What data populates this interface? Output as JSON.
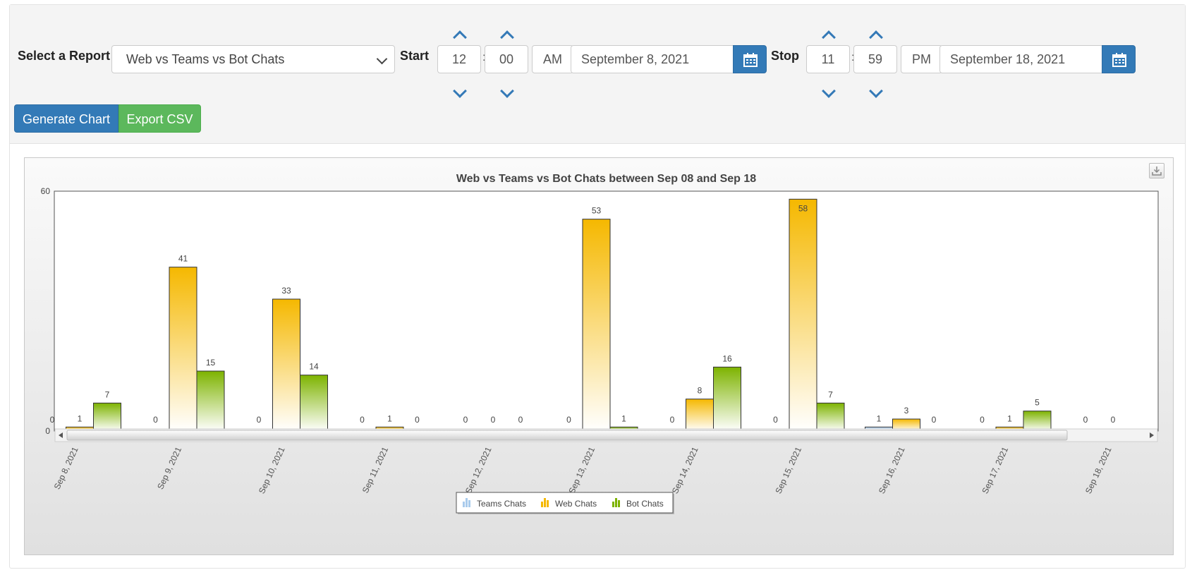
{
  "controls": {
    "select_report_label": "Select a Report",
    "report_value": "Web vs Teams vs Bot Chats",
    "start_label": "Start",
    "start_hour": "12",
    "start_minute": "00",
    "start_ampm": "AM",
    "start_date": "September 8, 2021",
    "stop_label": "Stop",
    "stop_hour": "11",
    "stop_minute": "59",
    "stop_ampm": "PM",
    "stop_date": "September 18, 2021",
    "colon": ":",
    "generate_label": "Generate Chart",
    "export_label": "Export CSV",
    "icons": [
      "chevron-up-icon",
      "chevron-down-icon",
      "calendar-icon",
      "download-icon"
    ],
    "colors": {
      "primary": "#337ab7",
      "success": "#5cb85c"
    }
  },
  "chart_data": {
    "type": "bar",
    "title": "Web vs Teams vs Bot Chats between Sep 08 and Sep 18",
    "categories": [
      "Sep 8, 2021",
      "Sep 9, 2021",
      "Sep 10, 2021",
      "Sep 11, 2021",
      "Sep 12, 2021",
      "Sep 13, 2021",
      "Sep 14, 2021",
      "Sep 15, 2021",
      "Sep 16, 2021",
      "Sep 17, 2021",
      "Sep 18, 2021"
    ],
    "series": [
      {
        "name": "Teams Chats",
        "color": "#a9cbec",
        "values": [
          0,
          0,
          0,
          0,
          0,
          0,
          0,
          0,
          1,
          0,
          0
        ]
      },
      {
        "name": "Web Chats",
        "color": "#f5b800",
        "values": [
          1,
          41,
          33,
          1,
          0,
          53,
          8,
          58,
          3,
          1,
          0
        ]
      },
      {
        "name": "Bot Chats",
        "color": "#7db300",
        "values": [
          7,
          15,
          14,
          0,
          0,
          1,
          16,
          7,
          0,
          5,
          null
        ]
      }
    ],
    "ylim": [
      0,
      60
    ],
    "y_ticks": [
      "0",
      "60"
    ],
    "legend": "bottom-center",
    "grid": false
  }
}
